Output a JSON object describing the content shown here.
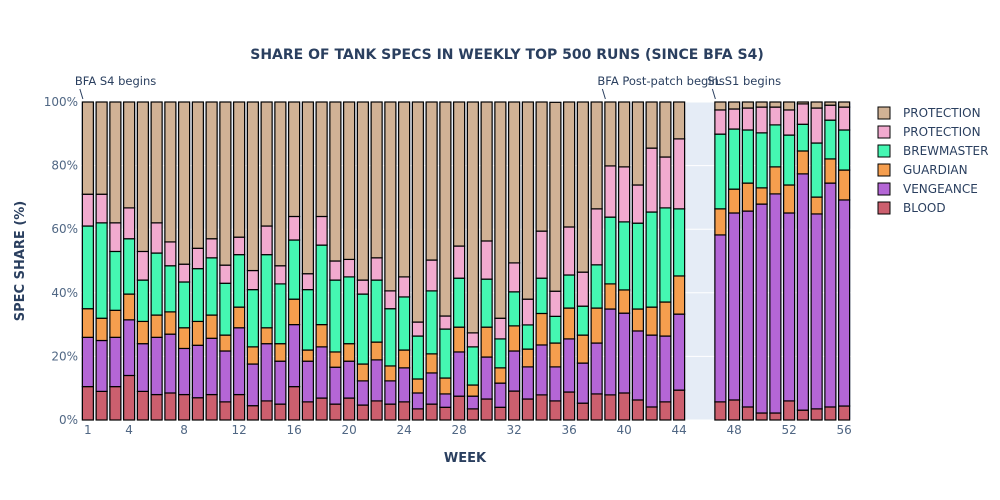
{
  "chart_data": {
    "type": "bar",
    "stacked": true,
    "title": "SHARE OF TANK SPECS IN WEEKLY TOP 500 RUNS (SINCE BFA S4)",
    "xlabel": "WEEK",
    "ylabel": "SPEC SHARE (%)",
    "ylim": [
      0,
      100
    ],
    "xlim": [
      0.5,
      56.5
    ],
    "ytick_labels": [
      "0%",
      "20%",
      "40%",
      "60%",
      "80%",
      "100%"
    ],
    "ytick_values": [
      0,
      20,
      40,
      60,
      80,
      100
    ],
    "xtick_values": [
      1,
      4,
      8,
      12,
      16,
      20,
      24,
      28,
      32,
      36,
      40,
      44,
      48,
      52,
      56
    ],
    "grid": true,
    "legend_position": "right",
    "annotations": [
      {
        "text": "BFA S4 begins",
        "x": 1
      },
      {
        "text": "BFA Post-patch begins",
        "x": 39
      },
      {
        "text": "SL S1 begins",
        "x": 47
      }
    ],
    "x": [
      1,
      2,
      3,
      4,
      5,
      6,
      7,
      8,
      9,
      10,
      11,
      12,
      13,
      14,
      15,
      16,
      17,
      18,
      19,
      20,
      21,
      22,
      23,
      24,
      25,
      26,
      27,
      28,
      29,
      30,
      31,
      32,
      33,
      34,
      35,
      36,
      37,
      38,
      39,
      40,
      41,
      42,
      43,
      44,
      47,
      48,
      49,
      50,
      51,
      52,
      53,
      54,
      55,
      56
    ],
    "cumulative_boundaries_note": "series stacked bottom-to-top: BLOOD, VENGEANCE, GUARDIAN, BREWMASTER, PROTECTION (pink), PROTECTION (tan)",
    "series": [
      {
        "name": "BLOOD",
        "color": "#CC5F6E",
        "values": [
          10.5,
          9,
          10.5,
          14,
          9,
          8,
          8.5,
          8,
          7,
          8,
          5.7,
          8,
          4.5,
          6,
          5,
          10.5,
          5.7,
          6.9,
          5,
          6.9,
          4.7,
          6,
          5,
          5.7,
          3.5,
          5,
          4,
          7.5,
          3.5,
          6.6,
          4,
          9.1,
          6.6,
          7.9,
          6,
          8.8,
          5.3,
          8.2,
          7.9,
          8.5,
          6.3,
          4.1,
          5.7,
          9.4,
          5.7,
          6.3,
          4.1,
          2.2,
          2.2,
          6,
          3.1,
          3.5,
          4.1,
          4.4
        ]
      },
      {
        "name": "VENGEANCE",
        "color": "#B466D6",
        "values": [
          15.5,
          16,
          15.5,
          17.5,
          15,
          18,
          18.5,
          14.5,
          16.5,
          17.7,
          16,
          21,
          13.1,
          18,
          13.5,
          19.5,
          12.8,
          16.1,
          11.6,
          11.6,
          7.6,
          12.9,
          7.3,
          10.7,
          5,
          9.8,
          4.2,
          13.9,
          4,
          13.2,
          7.6,
          12.6,
          10.1,
          15.7,
          10.7,
          16.7,
          12.6,
          16,
          27,
          25.1,
          21.7,
          22.6,
          20.7,
          23.9,
          52.5,
          58.8,
          61.6,
          65.7,
          68.9,
          59.1,
          74.3,
          61.3,
          70.4,
          64.8
        ]
      },
      {
        "name": "GUARDIAN",
        "color": "#F59E4E",
        "values": [
          9,
          7,
          8.5,
          8.1,
          7,
          7,
          7,
          6.5,
          7.5,
          7.3,
          5,
          6.5,
          5.4,
          5,
          5.5,
          8,
          3.5,
          7,
          4.8,
          5.5,
          5.3,
          5.6,
          4.7,
          5.6,
          4.4,
          6,
          5,
          7.8,
          3.5,
          9.4,
          4.8,
          7.9,
          5.6,
          9.9,
          7.5,
          9.7,
          8.8,
          11,
          7.9,
          7.3,
          6.9,
          8.8,
          10.7,
          12,
          8.2,
          7.5,
          8.8,
          5.1,
          8.5,
          8.8,
          7.2,
          5.3,
          7.6,
          9.4
        ]
      },
      {
        "name": "BREWMASTER",
        "color": "#45F7B2",
        "values": [
          26,
          30,
          18.5,
          17.4,
          13,
          19.5,
          14.5,
          14.4,
          16.6,
          18,
          16.3,
          16.5,
          18,
          23,
          18.8,
          18.6,
          19,
          25,
          22.6,
          21,
          22,
          19.5,
          18,
          16.7,
          13.5,
          19.8,
          15.4,
          15.4,
          12,
          15.1,
          9.1,
          10.7,
          7.6,
          11.1,
          8.4,
          10.4,
          9.1,
          13.6,
          21,
          21.4,
          27,
          29.9,
          29.6,
          21.1,
          23.5,
          18.9,
          16.7,
          17.3,
          13.2,
          15.7,
          8.4,
          17,
          12.2,
          12.6
        ]
      },
      {
        "name": "PROTECTION",
        "color": "#F2AACF",
        "values": [
          10,
          9,
          9,
          9.7,
          9,
          9.5,
          7.5,
          5.6,
          6.4,
          6,
          5.7,
          5.5,
          6,
          9,
          5.7,
          7.4,
          5,
          9,
          6,
          5.5,
          4.4,
          7,
          5.6,
          6.3,
          4.4,
          9.7,
          4.1,
          10.1,
          4.4,
          12,
          6.5,
          9.1,
          8.1,
          14.8,
          7.9,
          15.1,
          10.7,
          17.6,
          16.1,
          17.3,
          12,
          20.1,
          16,
          22,
          7.6,
          6.3,
          6.9,
          8.1,
          5.6,
          7.9,
          6.4,
          11,
          4.7,
          7.2
        ]
      },
      {
        "name": "PROTECTION",
        "color": "#D1B295",
        "values": [
          29,
          29,
          38,
          33.3,
          47,
          38,
          44,
          51,
          46,
          43,
          51.3,
          42.5,
          53,
          39,
          51.5,
          36,
          54,
          36,
          50,
          49.5,
          56,
          49,
          59.4,
          55,
          69.2,
          49.7,
          67.3,
          45.3,
          72.6,
          43.7,
          68,
          50.6,
          62,
          40.6,
          59.4,
          39.3,
          53.5,
          33.6,
          20.1,
          20.4,
          26.1,
          14.5,
          17.3,
          11.6,
          2.5,
          2.2,
          1.9,
          1.6,
          1.6,
          2.5,
          0.6,
          1.9,
          1,
          1.6
        ]
      }
    ]
  }
}
